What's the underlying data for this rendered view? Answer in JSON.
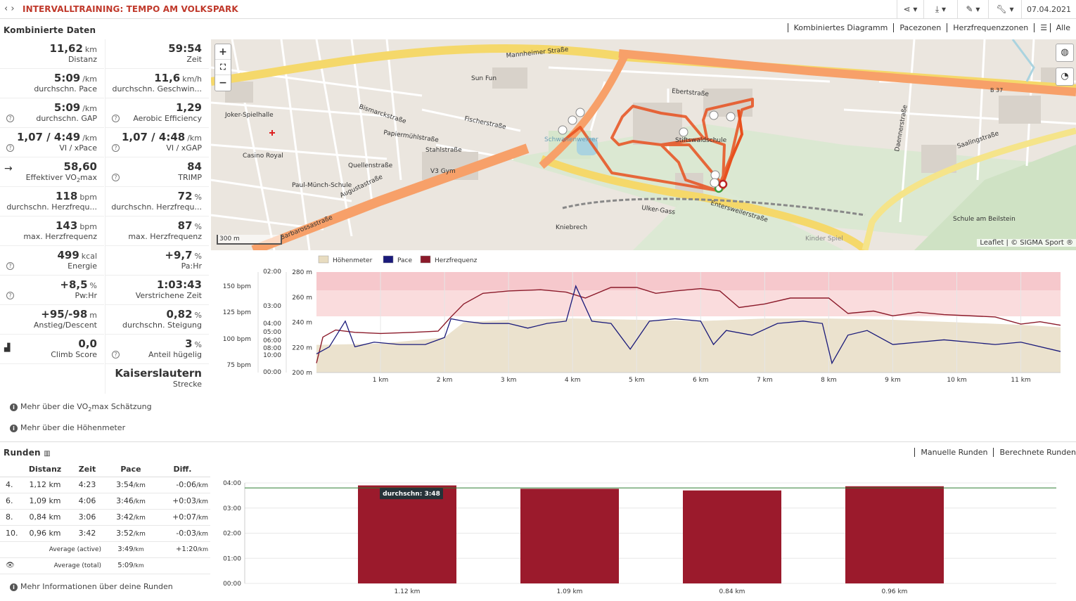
{
  "header": {
    "title": "INTERVALLTRAINING: TEMPO AM VOLKSPARK",
    "date": "07.04.2021"
  },
  "combined": {
    "title": "Kombinierte Daten",
    "tabs": [
      "Kombiniertes Diagramm",
      "Pacezonen",
      "Herzfrequenzzonen",
      "Alle"
    ],
    "stats": [
      {
        "value": "11,62",
        "unit": "km",
        "label": "Distanz"
      },
      {
        "value": "59:54",
        "unit": "",
        "label": "Zeit"
      },
      {
        "value": "5:09",
        "unit": "/km",
        "label": "durchschn. Pace"
      },
      {
        "value": "11,6",
        "unit": "km/h",
        "label": "durchschn. Geschwin..."
      },
      {
        "value": "5:09",
        "unit": "/km",
        "label": "durchschn. GAP"
      },
      {
        "value": "1,29",
        "unit": "",
        "label": "Aerobic Efficiency"
      },
      {
        "value": "1,07 / 4:49",
        "unit": "/km",
        "label": "VI / xPace"
      },
      {
        "value": "1,07 / 4:48",
        "unit": "/km",
        "label": "VI / xGAP"
      },
      {
        "value": "58,60",
        "unit": "",
        "label": "Effektiver VO2max"
      },
      {
        "value": "84",
        "unit": "",
        "label": "TRIMP"
      },
      {
        "value": "118",
        "unit": "bpm",
        "label": "durchschn. Herzfrequ..."
      },
      {
        "value": "72",
        "unit": "%",
        "label": "durchschn. Herzfrequ..."
      },
      {
        "value": "143",
        "unit": "bpm",
        "label": "max. Herzfrequenz"
      },
      {
        "value": "87",
        "unit": "%",
        "label": "max. Herzfrequenz"
      },
      {
        "value": "499",
        "unit": "kcal",
        "label": "Energie"
      },
      {
        "value": "+9,7",
        "unit": "%",
        "label": "Pa:Hr"
      },
      {
        "value": "+8,5",
        "unit": "%",
        "label": "Pw:Hr"
      },
      {
        "value": "1:03:43",
        "unit": "",
        "label": "Verstrichene Zeit"
      },
      {
        "value": "+95/-98",
        "unit": "m",
        "label": "Anstieg/Descent"
      },
      {
        "value": "0,82",
        "unit": "%",
        "label": "durchschn. Steigung"
      },
      {
        "value": "0,0",
        "unit": "",
        "label": "Climb Score"
      },
      {
        "value": "3",
        "unit": "%",
        "label": "Anteil hügelig"
      },
      {
        "value": "Kaiserslautern",
        "unit": "",
        "label": "Strecke"
      }
    ],
    "more_vo2": "Mehr über die VO2max Schätzung",
    "more_elev": "Mehr über die Höhenmeter"
  },
  "map": {
    "scale": "300 m",
    "attribution": "Leaflet | © SIGMA Sport ®",
    "labels": [
      "Mannheimer Straße",
      "Barbarossastraße",
      "Entersweilerstraße",
      "Stiftswaldschule",
      "Schwanenweiher",
      "Saalingstraße",
      "Kniebrech",
      "Ulker-Gass",
      "Paul-Münch-Schule",
      "Casino Royal",
      "Joker-Spielhalle",
      "Sun Fun",
      "Schule am Beilstein",
      "Fischerstraße",
      "Ebertstraße",
      "Papiermühlstraße",
      "Bismarckstraße",
      "Augustastraße",
      "Quellenstraße",
      "Stahlstraße",
      "V3 Gym",
      "Daennerstraße",
      "Kinder Spiel",
      "B 37"
    ]
  },
  "chart_data": [
    {
      "type": "line",
      "legend": [
        "Höhenmeter",
        "Pace",
        "Herzfrequenz"
      ],
      "legend_colors": [
        "#e8dcc0",
        "#1a1a7a",
        "#8b1a2a"
      ],
      "x_ticks": [
        "1 km",
        "2 km",
        "3 km",
        "4 km",
        "5 km",
        "6 km",
        "7 km",
        "8 km",
        "9 km",
        "10 km",
        "11 km"
      ],
      "hr_ticks": [
        "150 bpm",
        "125 bpm",
        "100 bpm",
        "75 bpm"
      ],
      "pace_ticks": [
        "02:00",
        "03:00",
        "04:00",
        "05:00",
        "06:00",
        "08:00",
        "10:00",
        "00:00"
      ],
      "elev_ticks": [
        "280 m",
        "260 m",
        "240 m",
        "220 m",
        "200 m"
      ],
      "xlim": [
        0,
        11.62
      ],
      "series": [
        {
          "name": "Herzfrequenz",
          "x": [
            0,
            0.1,
            0.3,
            0.6,
            1,
            1.5,
            1.9,
            2.1,
            2.3,
            2.6,
            3,
            3.5,
            3.9,
            4.2,
            4.6,
            5,
            5.3,
            5.6,
            6,
            6.3,
            6.6,
            7,
            7.4,
            7.7,
            8,
            8.3,
            8.7,
            9,
            9.4,
            9.8,
            10.2,
            10.6,
            11,
            11.3,
            11.62
          ],
          "values": [
            78,
            100,
            106,
            104,
            103,
            104,
            105,
            117,
            128,
            137,
            139,
            140,
            138,
            133,
            142,
            142,
            137,
            139,
            141,
            139,
            125,
            128,
            133,
            133,
            133,
            120,
            122,
            118,
            121,
            119,
            118,
            117,
            111,
            113,
            110
          ]
        },
        {
          "name": "Pace",
          "x": [
            0,
            0.2,
            0.45,
            0.6,
            0.9,
            1.3,
            1.7,
            2,
            2.1,
            2.3,
            2.6,
            3,
            3.3,
            3.6,
            3.9,
            4.05,
            4.3,
            4.6,
            4.9,
            5.2,
            5.6,
            6,
            6.2,
            6.4,
            6.8,
            7.2,
            7.6,
            7.9,
            8.05,
            8.3,
            8.6,
            9,
            9.4,
            9.8,
            10.2,
            10.6,
            11,
            11.62
          ],
          "values": [
            6.0,
            5.7,
            4.6,
            5.7,
            5.5,
            5.6,
            5.6,
            5.3,
            4.5,
            4.6,
            4.7,
            4.7,
            4.9,
            4.7,
            4.6,
            3.1,
            4.6,
            4.7,
            5.8,
            4.6,
            4.5,
            4.6,
            5.6,
            5.0,
            5.2,
            4.7,
            4.6,
            4.7,
            6.4,
            5.2,
            5.0,
            5.6,
            5.5,
            5.4,
            5.5,
            5.6,
            5.5,
            5.9
          ]
        },
        {
          "name": "Höhenmeter",
          "x": [
            0,
            1,
            2,
            2.3,
            3,
            4,
            5,
            6,
            7,
            8,
            9,
            10,
            11,
            11.62
          ],
          "values": [
            222,
            223,
            228,
            240,
            242,
            243,
            242,
            241,
            243,
            243,
            242,
            240,
            238,
            236
          ]
        }
      ]
    },
    {
      "type": "bar",
      "categories": [
        "1.12 km",
        "1.09 km",
        "0.84 km",
        "0.96 km"
      ],
      "values": [
        "03:54",
        "03:46",
        "03:42",
        "03:52"
      ],
      "y_ticks": [
        "04:00",
        "03:00",
        "02:00",
        "01:00",
        "00:00"
      ],
      "avg_label": "durchschn: 3:48",
      "avg_value": "03:48",
      "bar_color": "#9b1a2c"
    }
  ],
  "runden": {
    "title": "Runden",
    "tabs": [
      "Manuelle Runden",
      "Berechnete Runden"
    ],
    "headers": [
      "",
      "Distanz",
      "Zeit",
      "Pace",
      "Diff."
    ],
    "rows": [
      {
        "n": "4.",
        "dist": "1,12 km",
        "time": "4:23",
        "pace": "3:54",
        "pace_unit": "/km",
        "diff": "-0:06",
        "diff_unit": "/km",
        "sign": "neg"
      },
      {
        "n": "6.",
        "dist": "1,09 km",
        "time": "4:06",
        "pace": "3:46",
        "pace_unit": "/km",
        "diff": "+0:03",
        "diff_unit": "/km",
        "sign": "pos"
      },
      {
        "n": "8.",
        "dist": "0,84 km",
        "time": "3:06",
        "pace": "3:42",
        "pace_unit": "/km",
        "diff": "+0:07",
        "diff_unit": "/km",
        "sign": "pos"
      },
      {
        "n": "10.",
        "dist": "0,96 km",
        "time": "3:42",
        "pace": "3:52",
        "pace_unit": "/km",
        "diff": "-0:03",
        "diff_unit": "/km",
        "sign": "neg"
      }
    ],
    "avg_active_label": "Average (active)",
    "avg_active_pace": "3:49",
    "avg_active_diff": "+1:20",
    "avg_total_label": "Average (total)",
    "avg_total_pace": "5:09",
    "unit": "/km",
    "more": "Mehr Informationen über deine Runden"
  }
}
